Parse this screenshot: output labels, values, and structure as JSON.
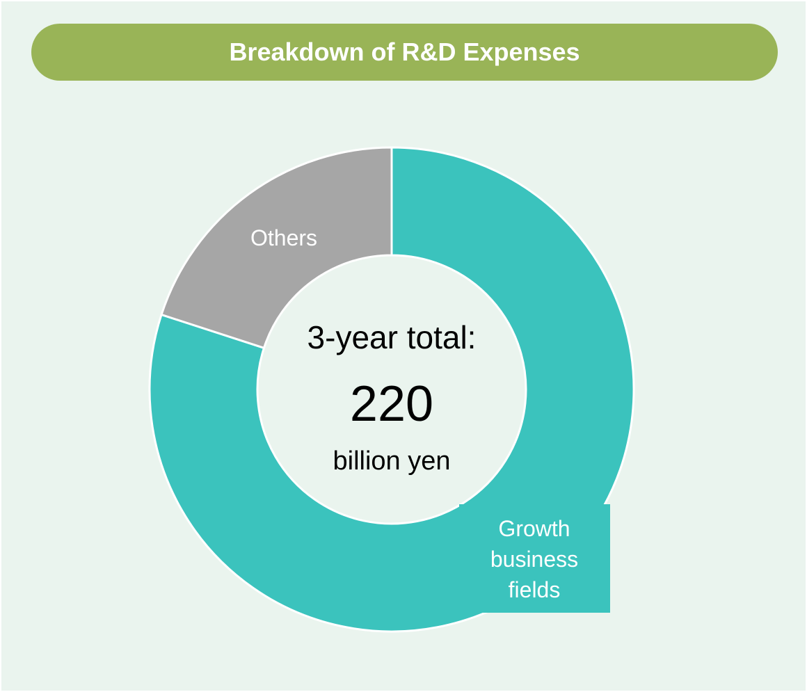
{
  "chart_data": {
    "type": "pie",
    "donut": true,
    "title": "Breakdown of R&D Expenses",
    "categories": [
      "Growth business fields",
      "Others"
    ],
    "values": [
      80,
      20
    ],
    "colors": [
      "#3bc3bd",
      "#a6a6a6"
    ],
    "center_text": [
      "3-year total:",
      "220",
      "billion yen"
    ]
  }
}
